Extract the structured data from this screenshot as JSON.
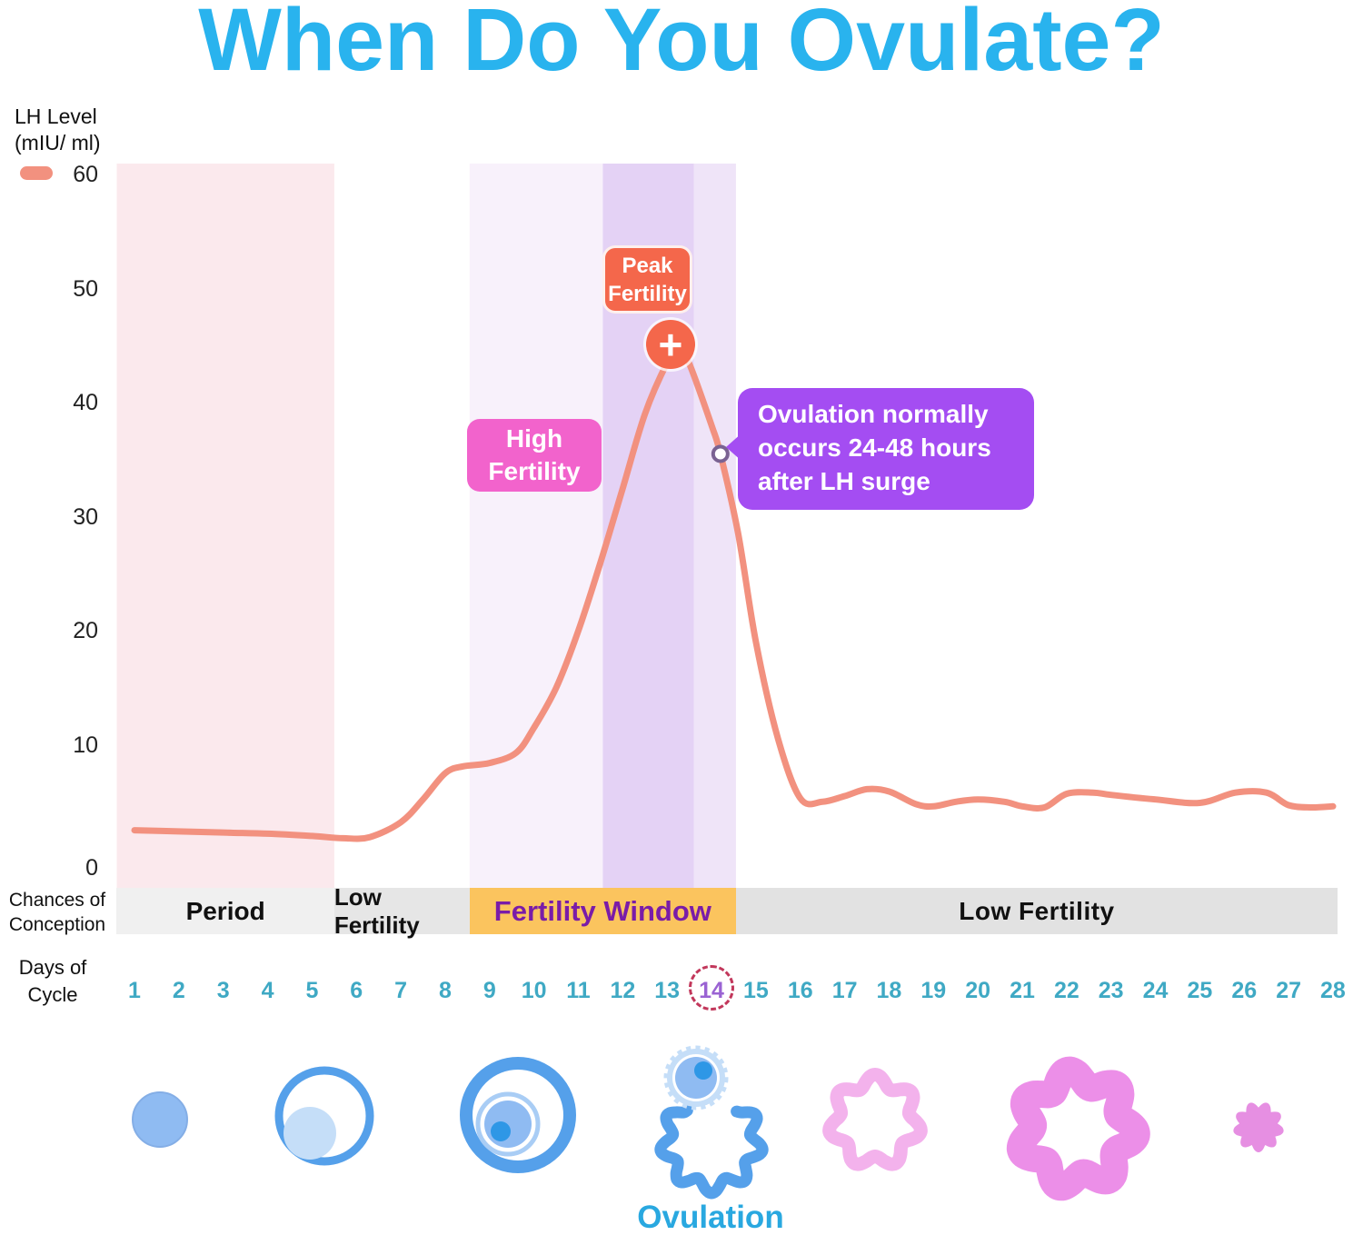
{
  "title": "When Do You Ovulate?",
  "ovulation_label": "Ovulation",
  "legend": {
    "series_swatch": "lh-level"
  },
  "annotations": {
    "peak_badge": {
      "line1": "Peak",
      "line2": "Fertility"
    },
    "high_badge": {
      "line1": "High",
      "line2": "Fertility"
    },
    "tooltip": {
      "line1": "Ovulation normally",
      "line2": "occurs 24-48 hours",
      "line3": "after LH surge"
    },
    "plus_symbol": "+"
  },
  "conception_row": {
    "label_line1": "Chances of",
    "label_line2": "Conception",
    "segments": [
      {
        "label": "Period",
        "day_from": 0.6,
        "day_to": 5.5,
        "bg": "#F0F0F0",
        "fg": "#111111"
      },
      {
        "label": "Low Fertility",
        "day_from": 5.5,
        "day_to": 8.55,
        "bg": "#E6E6E6",
        "fg": "#111111"
      },
      {
        "label": "Fertility Window",
        "day_from": 8.55,
        "day_to": 14.55,
        "bg": "#FBC45E",
        "fg": "#7A1CA8"
      },
      {
        "label": "Low Fertility",
        "day_from": 14.55,
        "day_to": 28.15,
        "bg": "#E2E2E2",
        "fg": "#111111"
      }
    ]
  },
  "days_row": {
    "label_line1": "Days of",
    "label_line2": "Cycle",
    "days": [
      1,
      2,
      3,
      4,
      5,
      6,
      7,
      8,
      9,
      10,
      11,
      12,
      13,
      14,
      15,
      16,
      17,
      18,
      19,
      20,
      21,
      22,
      23,
      24,
      25,
      26,
      27,
      28
    ],
    "highlighted_day": 14
  },
  "colors": {
    "title": "#29B3EE",
    "curve": "#F2917F",
    "peak_badge": "#F4674B",
    "high_badge": "#F263CC",
    "tooltip": "#A44DF2",
    "fertility_window_bg": "#FBC45E",
    "fertility_window_text": "#7A1CA8",
    "day_number": "#3FA9C4",
    "day_highlight": "#9A63D3",
    "day_highlight_ring": "#C2375B",
    "ovulation_label": "#29A8E0",
    "period_band": "#FBE9ED",
    "high_fertility_band": "#F8F1FB",
    "peak_fertility_band": "#E4D2F5",
    "ovulation_band": "#EFE4F8"
  },
  "chart_data": {
    "type": "line",
    "title": "When Do You Ovulate?",
    "y_axis": {
      "label_line1": "LH Level",
      "label_line2": "(mIU/ ml)",
      "ticks": [
        60,
        50,
        40,
        30,
        20,
        10,
        0
      ],
      "range": [
        0,
        60
      ]
    },
    "x_axis": {
      "label": "Days of Cycle",
      "range": [
        1,
        28
      ]
    },
    "legend_position": "top-left",
    "grid": false,
    "bands": [
      {
        "label": "Period",
        "day_from": 0.6,
        "day_to": 5.5,
        "color": "#FBE9ED"
      },
      {
        "label": "High Fertility",
        "day_from": 8.55,
        "day_to": 11.55,
        "color": "#F8F1FB"
      },
      {
        "label": "Peak Fertility",
        "day_from": 11.55,
        "day_to": 13.6,
        "color": "#E4D2F5"
      },
      {
        "label": "Ovulation",
        "day_from": 13.6,
        "day_to": 14.55,
        "color": "#EFE4F8"
      }
    ],
    "series": [
      {
        "name": "LH Level (mIU/ ml)",
        "color": "#F2917F",
        "points": [
          [
            1,
            2.5
          ],
          [
            2,
            2.4
          ],
          [
            3,
            2.3
          ],
          [
            4,
            2.2
          ],
          [
            5,
            2.0
          ],
          [
            5.7,
            1.8
          ],
          [
            6.3,
            1.9
          ],
          [
            7,
            3.2
          ],
          [
            7.5,
            5.2
          ],
          [
            8,
            7.5
          ],
          [
            8.4,
            8.1
          ],
          [
            9,
            8.4
          ],
          [
            9.6,
            9.3
          ],
          [
            10,
            11.5
          ],
          [
            10.5,
            15
          ],
          [
            11,
            20
          ],
          [
            11.5,
            26
          ],
          [
            12,
            32.5
          ],
          [
            12.5,
            39
          ],
          [
            13,
            43.5
          ],
          [
            13.25,
            44.8
          ],
          [
            13.5,
            43.4
          ],
          [
            14,
            38
          ],
          [
            14.2,
            35.5
          ],
          [
            14.6,
            28.5
          ],
          [
            15,
            19
          ],
          [
            15.5,
            10.5
          ],
          [
            16,
            5.3
          ],
          [
            16.5,
            5.0
          ],
          [
            17,
            5.5
          ],
          [
            17.5,
            6.1
          ],
          [
            18,
            5.9
          ],
          [
            18.6,
            4.8
          ],
          [
            19,
            4.6
          ],
          [
            19.5,
            5.0
          ],
          [
            20,
            5.2
          ],
          [
            20.6,
            5.0
          ],
          [
            21,
            4.6
          ],
          [
            21.5,
            4.5
          ],
          [
            22,
            5.7
          ],
          [
            22.6,
            5.8
          ],
          [
            23,
            5.6
          ],
          [
            24,
            5.2
          ],
          [
            25,
            4.9
          ],
          [
            25.8,
            5.8
          ],
          [
            26.5,
            5.8
          ],
          [
            27,
            4.7
          ],
          [
            27.5,
            4.5
          ],
          [
            28,
            4.6
          ]
        ]
      }
    ],
    "markers": {
      "peak": {
        "label": "Peak Fertility",
        "day": 13.2,
        "value": 44.8
      },
      "ovulation_dot": {
        "label": "Ovulation normally occurs 24-48 hours after LH surge",
        "day": 14.2,
        "value": 35.5
      }
    }
  }
}
